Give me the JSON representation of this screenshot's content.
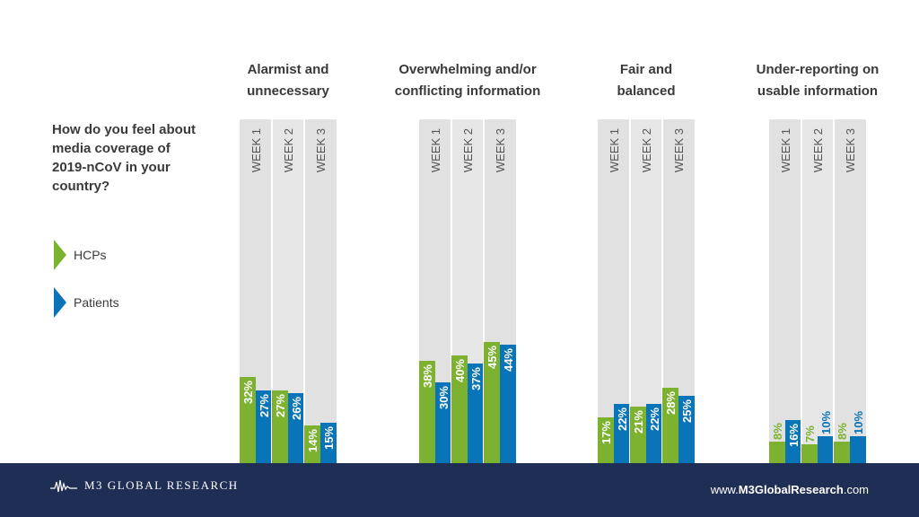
{
  "question": "How do you feel about media coverage of 2019-nCoV in your country?",
  "legend": [
    {
      "name": "HCPs",
      "color": "#7cb22f",
      "icon": "triangle-right-icon"
    },
    {
      "name": "Patients",
      "color": "#0a74b8",
      "icon": "triangle-right-icon"
    }
  ],
  "chart_data": {
    "type": "bar",
    "categories": [
      "Alarmist and unnecessary",
      "Overwhelming and/or conflicting information",
      "Fair and balanced",
      "Under-reporting on usable information"
    ],
    "category_lines": [
      [
        "Alarmist and",
        "unnecessary"
      ],
      [
        "Overwhelming and/or",
        "conflicting information"
      ],
      [
        "Fair and",
        "balanced"
      ],
      [
        "Under-reporting on",
        "usable information"
      ]
    ],
    "weeks": [
      "WEEK 1",
      "WEEK 2",
      "WEEK 3"
    ],
    "series": [
      {
        "name": "HCPs",
        "color": "#7cb22f",
        "values": [
          [
            32,
            27,
            14
          ],
          [
            38,
            40,
            45
          ],
          [
            17,
            21,
            28
          ],
          [
            8,
            7,
            8
          ]
        ]
      },
      {
        "name": "Patients",
        "color": "#0a74b8",
        "values": [
          [
            27,
            26,
            15
          ],
          [
            30,
            37,
            44
          ],
          [
            22,
            22,
            25
          ],
          [
            16,
            10,
            10
          ]
        ]
      }
    ],
    "unit": "%",
    "ylim": [
      0,
      100
    ],
    "legend_position": "left"
  },
  "footer": {
    "brand": "M3 GLOBAL RESEARCH",
    "website_prefix": "www.",
    "website_bold": "M3GlobalResearch",
    "website_suffix": ".com"
  }
}
